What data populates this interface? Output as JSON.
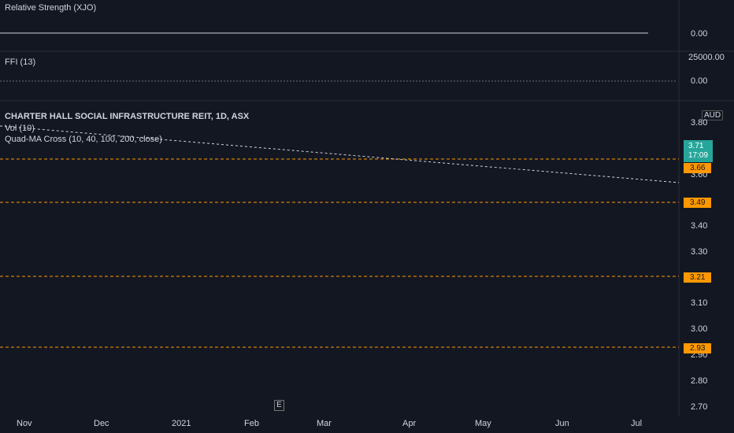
{
  "panes": {
    "rs": {
      "label": "Relative Strength (XJO)",
      "ticks": [
        "0.00"
      ]
    },
    "ffi": {
      "label": "FFI (13)",
      "ticks": [
        "25000.00",
        "0.00"
      ]
    },
    "main": {
      "title": "CHARTER HALL SOCIAL INFRASTRUCTURE REIT, 1D, ASX",
      "vol_label": "Vol (10)",
      "ma_label": "Quad-MA Cross (10, 40, 100, 200, close)",
      "currency": "AUD",
      "price_ticks": [
        "3.80",
        "3.60",
        "3.40",
        "3.30",
        "3.10",
        "3.00",
        "2.90",
        "2.80",
        "2.70"
      ],
      "current_price": "3.71",
      "countdown": "17:09",
      "levels": [
        "3.66",
        "3.49",
        "3.21",
        "2.93"
      ]
    }
  },
  "x_axis": [
    "Nov",
    "Dec",
    "2021",
    "Feb",
    "Mar",
    "Apr",
    "May",
    "Jun",
    "Jul"
  ],
  "colors": {
    "up": "#26a69a",
    "down": "#ef5350",
    "ma10": "#f06262",
    "ma40": "#26a69a",
    "ma100": "#ffffff",
    "ma200": "#ff9800",
    "level": "#ff9800",
    "rs": "#e0b400"
  },
  "chart_data": {
    "type": "line",
    "title": "CHARTER HALL SOCIAL INFRASTRUCTURE REIT, 1D, ASX",
    "series": [
      {
        "name": "Quad-MA Cross (10, 40, 100, 200, close)",
        "values": []
      }
    ],
    "horizontal_levels": [
      3.66,
      3.49,
      3.21,
      2.93
    ],
    "last_price": 3.71
  }
}
